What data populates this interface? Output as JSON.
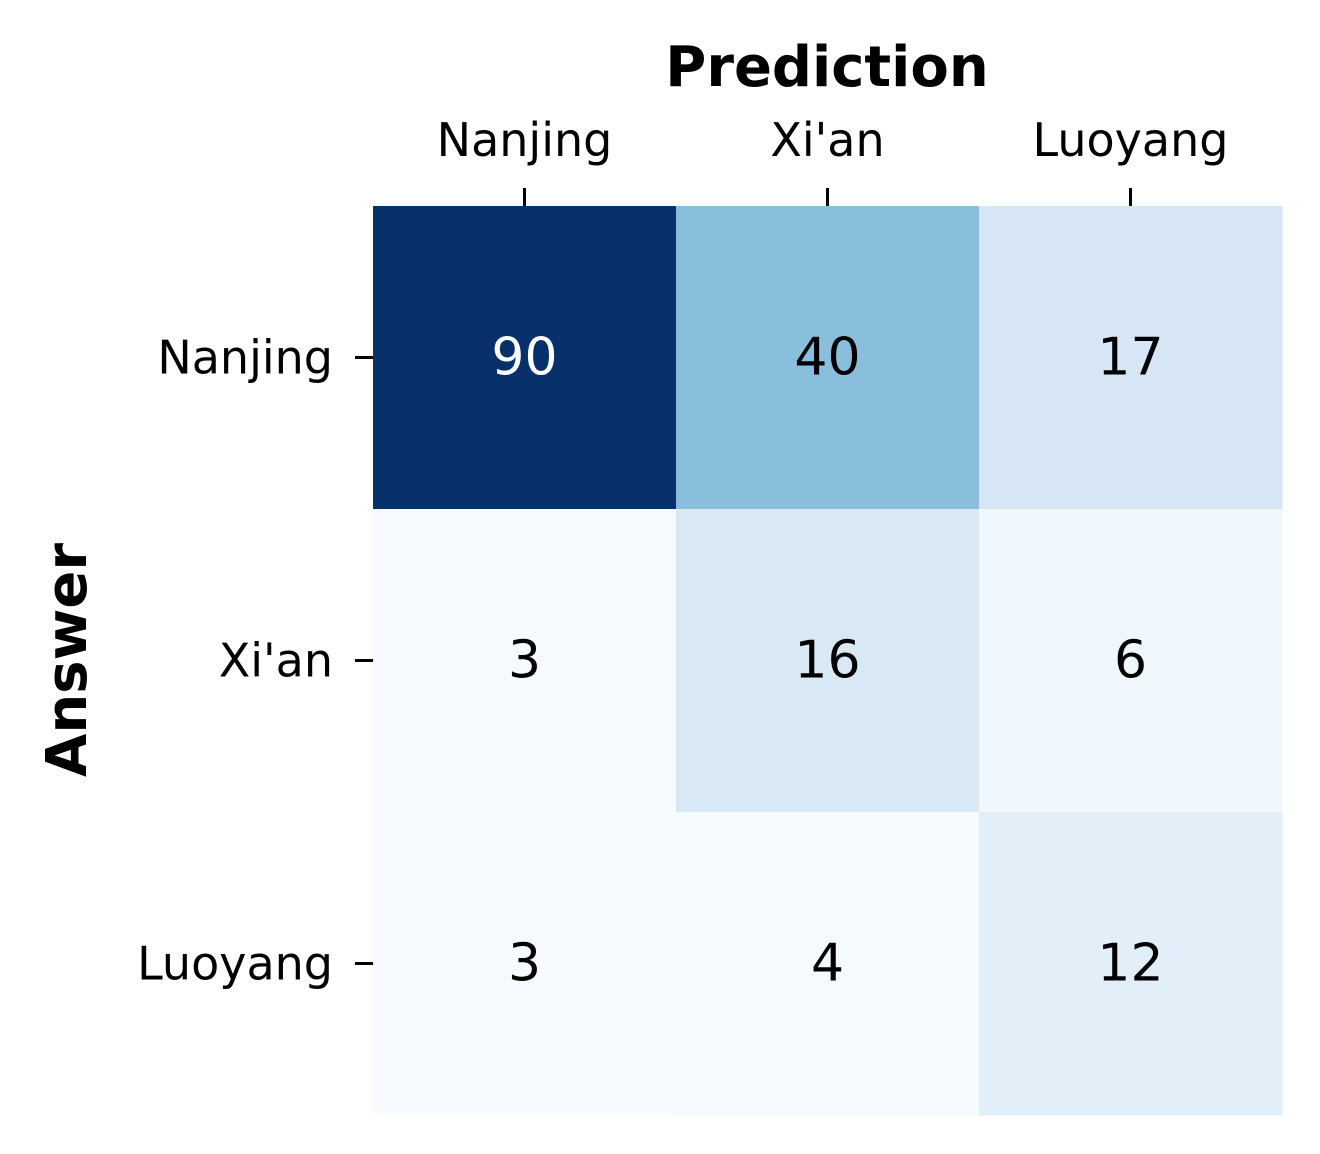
{
  "chart_data": {
    "type": "heatmap",
    "xlabel": "Prediction",
    "ylabel": "Answer",
    "x_categories": [
      "Nanjing",
      "Xi'an",
      "Luoyang"
    ],
    "y_categories": [
      "Nanjing",
      "Xi'an",
      "Luoyang"
    ],
    "values": [
      [
        90,
        40,
        17
      ],
      [
        3,
        16,
        6
      ],
      [
        3,
        4,
        12
      ]
    ],
    "colormap": "Blues",
    "vmin": 3,
    "vmax": 90,
    "x_axis_position": "top",
    "colorbar": false
  }
}
